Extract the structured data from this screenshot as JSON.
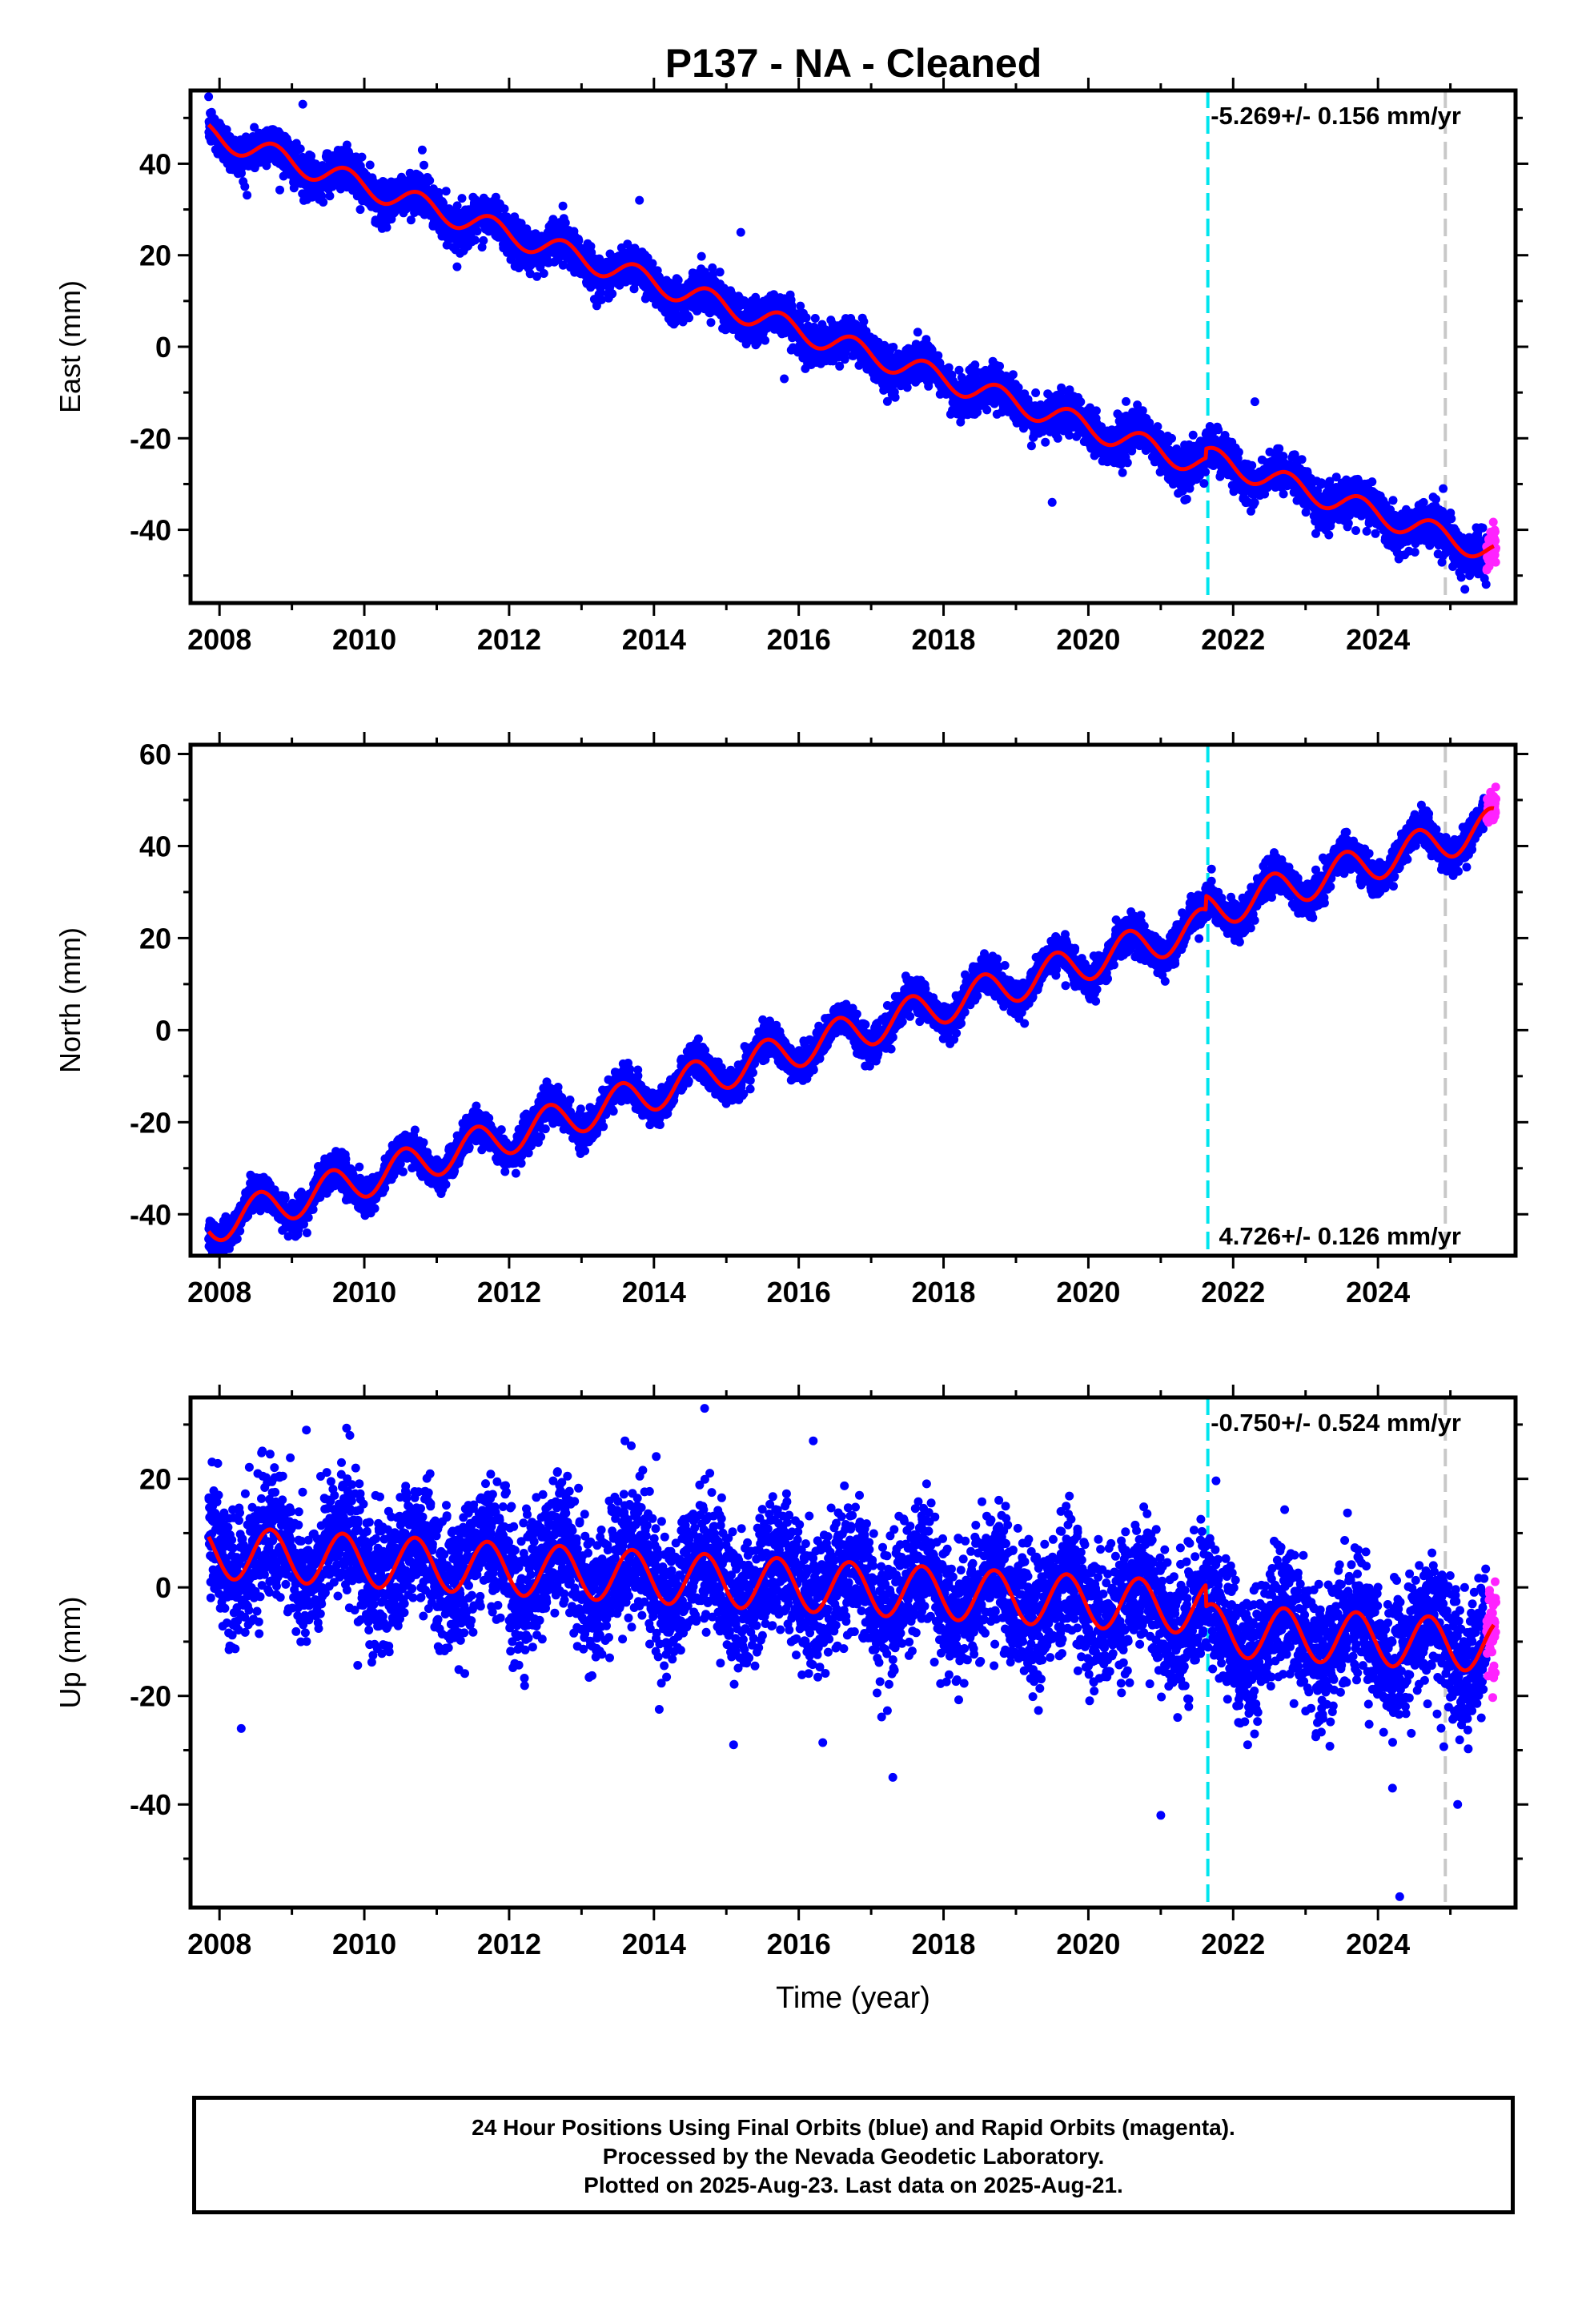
{
  "title": "P137  - NA - Cleaned",
  "chart_data": [
    {
      "type": "scatter",
      "component": "east",
      "ylabel": "East (mm)",
      "xlabel": "",
      "xlim": [
        2007.6,
        2025.9
      ],
      "ylim": [
        -56,
        56
      ],
      "yticks": [
        -40,
        -20,
        0,
        20,
        40
      ],
      "xticks": [
        2008,
        2010,
        2012,
        2014,
        2016,
        2018,
        2020,
        2022,
        2024
      ],
      "rate_text": "-5.269+/- 0.156 mm/yr",
      "rate_position": "top-right",
      "trend": {
        "start": 2007.85,
        "end": 2025.6,
        "value_at_start": 46.5,
        "rate_mm_per_yr": -5.269,
        "annual_amplitude": 2.5,
        "annual_phase_peak": 0.75,
        "offsets": [
          {
            "epoch": 2021.62,
            "delta": 2.0
          }
        ]
      },
      "scatter_sigma": 2.2,
      "rapid_segment": {
        "start": 2025.5,
        "end": 2025.63
      },
      "outliers": [
        [
          2008.35,
          35
        ],
        [
          2009.15,
          53
        ],
        [
          2010.8,
          43
        ],
        [
          2013.8,
          32
        ],
        [
          2015.2,
          25
        ],
        [
          2015.8,
          -7
        ],
        [
          2019.5,
          -34
        ],
        [
          2022.3,
          -12
        ],
        [
          2024.9,
          -31
        ],
        [
          2025.2,
          -53
        ]
      ],
      "vlines": [
        {
          "x": 2021.65,
          "color": "#00e5ee"
        },
        {
          "x": 2024.93,
          "color": "#c8c8c8"
        }
      ]
    },
    {
      "type": "scatter",
      "component": "north",
      "ylabel": "North (mm)",
      "xlabel": "",
      "xlim": [
        2007.6,
        2025.9
      ],
      "ylim": [
        -49,
        62
      ],
      "yticks": [
        -40,
        -20,
        0,
        20,
        40,
        60
      ],
      "xticks": [
        2008,
        2010,
        2012,
        2014,
        2016,
        2018,
        2020,
        2022,
        2024
      ],
      "rate_text": "4.726+/- 0.126 mm/yr",
      "rate_position": "bottom-right",
      "trend": {
        "start": 2007.85,
        "end": 2025.6,
        "value_at_start": -42.5,
        "rate_mm_per_yr": 4.726,
        "annual_amplitude": 4.0,
        "annual_phase_peak": 0.55,
        "offsets": [
          {
            "epoch": 2021.62,
            "delta": 3.0
          }
        ]
      },
      "scatter_sigma": 1.8,
      "rapid_segment": {
        "start": 2025.5,
        "end": 2025.63
      },
      "outliers": [
        [
          2008.0,
          -47
        ],
        [
          2015.6,
          2
        ],
        [
          2021.7,
          35
        ]
      ],
      "vlines": [
        {
          "x": 2021.65,
          "color": "#00e5ee"
        },
        {
          "x": 2024.93,
          "color": "#c8c8c8"
        }
      ]
    },
    {
      "type": "scatter",
      "component": "up",
      "ylabel": "Up (mm)",
      "xlabel": "Time (year)",
      "xlim": [
        2007.6,
        2025.9
      ],
      "ylim": [
        -59,
        35
      ],
      "yticks": [
        -40,
        -20,
        0,
        20
      ],
      "xticks": [
        2008,
        2010,
        2012,
        2014,
        2016,
        2018,
        2020,
        2022,
        2024
      ],
      "rate_text": "-0.750+/- 0.524 mm/yr",
      "rate_position": "top-right",
      "trend": {
        "start": 2007.85,
        "end": 2025.6,
        "value_at_start": 6.5,
        "rate_mm_per_yr": -0.75,
        "annual_amplitude": 4.8,
        "annual_phase_peak": 0.7,
        "offsets": [
          {
            "epoch": 2021.62,
            "delta": -4.0
          }
        ]
      },
      "scatter_sigma": 6.0,
      "rapid_segment": {
        "start": 2025.5,
        "end": 2025.63
      },
      "outliers": [
        [
          2008.3,
          -26
        ],
        [
          2009.2,
          29
        ],
        [
          2009.8,
          28
        ],
        [
          2013.6,
          27
        ],
        [
          2014.7,
          33
        ],
        [
          2015.1,
          -29
        ],
        [
          2016.2,
          27
        ],
        [
          2017.3,
          -35
        ],
        [
          2021.0,
          -42
        ],
        [
          2022.2,
          -29
        ],
        [
          2024.2,
          -37
        ],
        [
          2024.3,
          -57
        ],
        [
          2025.1,
          -40
        ]
      ],
      "vlines": [
        {
          "x": 2021.65,
          "color": "#00e5ee"
        },
        {
          "x": 2024.93,
          "color": "#c8c8c8"
        }
      ]
    }
  ],
  "colors": {
    "final_orbits": "#0000ff",
    "rapid_orbits": "#ff22ff",
    "model": "#ff0000",
    "frame": "#000000"
  },
  "caption": {
    "line1": "24 Hour Positions Using Final Orbits (blue) and Rapid Orbits (magenta).",
    "line2": "Processed by the Nevada Geodetic Laboratory.",
    "line3": "Plotted on 2025-Aug-23. Last data on 2025-Aug-21."
  }
}
